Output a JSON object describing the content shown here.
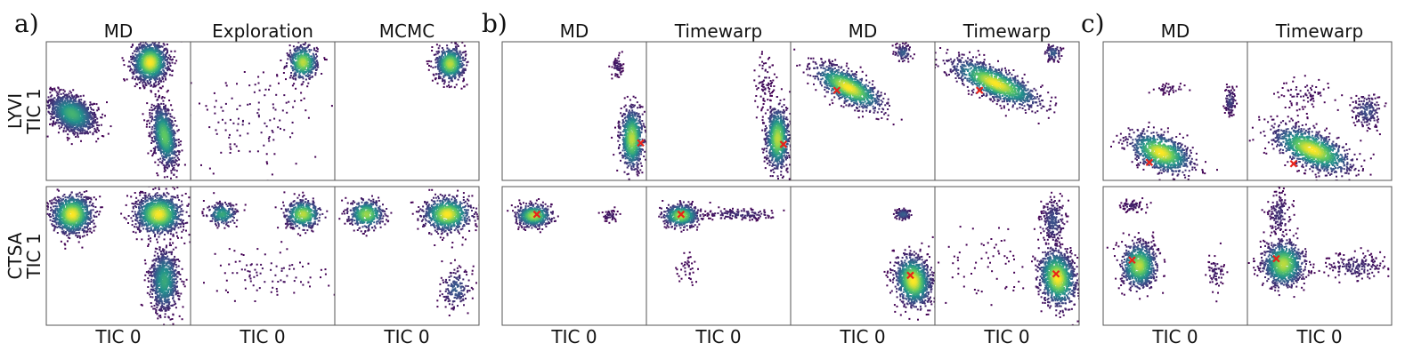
{
  "chart_data": [
    {
      "panel_label": "a)",
      "type": "heatmap",
      "columns": [
        "MD",
        "Exploration",
        "MCMC"
      ],
      "rows": [
        "LYVI",
        "CTSA"
      ],
      "ylabel": "TIC 1",
      "xlabel": "TIC 0",
      "colormap": [
        "#440154",
        "#3b528b",
        "#21918c",
        "#5ec962",
        "#fde725"
      ],
      "cells": [
        {
          "row": "LYVI",
          "col": "MD",
          "clusters": [
            {
              "x": 0.18,
              "y": 0.48,
              "sx": 0.09,
              "sy": 0.06,
              "rot": -35,
              "n": 1300,
              "peak": 0.65
            },
            {
              "x": 0.72,
              "y": 0.85,
              "sx": 0.06,
              "sy": 0.07,
              "rot": 0,
              "n": 1300,
              "peak": 1.0
            },
            {
              "x": 0.82,
              "y": 0.32,
              "sx": 0.04,
              "sy": 0.11,
              "rot": 10,
              "n": 1000,
              "peak": 0.75
            }
          ]
        },
        {
          "row": "LYVI",
          "col": "Exploration",
          "clusters": [
            {
              "x": 0.78,
              "y": 0.85,
              "sx": 0.05,
              "sy": 0.06,
              "rot": 0,
              "n": 500,
              "peak": 0.9
            },
            {
              "x": 0.45,
              "y": 0.45,
              "sx": 0.22,
              "sy": 0.18,
              "rot": 0,
              "n": 120,
              "peak": 0.05
            }
          ]
        },
        {
          "row": "LYVI",
          "col": "MCMC",
          "clusters": [
            {
              "x": 0.8,
              "y": 0.84,
              "sx": 0.05,
              "sy": 0.06,
              "rot": 0,
              "n": 650,
              "peak": 0.9
            }
          ]
        },
        {
          "row": "CTSA",
          "col": "MD",
          "clusters": [
            {
              "x": 0.18,
              "y": 0.8,
              "sx": 0.07,
              "sy": 0.07,
              "rot": 0,
              "n": 1100,
              "peak": 1.0
            },
            {
              "x": 0.78,
              "y": 0.8,
              "sx": 0.08,
              "sy": 0.07,
              "rot": 0,
              "n": 1200,
              "peak": 1.0
            },
            {
              "x": 0.82,
              "y": 0.32,
              "sx": 0.05,
              "sy": 0.11,
              "rot": 0,
              "n": 900,
              "peak": 0.6
            }
          ]
        },
        {
          "row": "CTSA",
          "col": "Exploration",
          "clusters": [
            {
              "x": 0.22,
              "y": 0.8,
              "sx": 0.05,
              "sy": 0.04,
              "rot": 0,
              "n": 250,
              "peak": 0.6
            },
            {
              "x": 0.78,
              "y": 0.8,
              "sx": 0.06,
              "sy": 0.05,
              "rot": 0,
              "n": 500,
              "peak": 0.9
            },
            {
              "x": 0.55,
              "y": 0.37,
              "sx": 0.2,
              "sy": 0.1,
              "rot": 0,
              "n": 90,
              "peak": 0.05
            }
          ]
        },
        {
          "row": "CTSA",
          "col": "MCMC",
          "clusters": [
            {
              "x": 0.22,
              "y": 0.8,
              "sx": 0.06,
              "sy": 0.05,
              "rot": 0,
              "n": 500,
              "peak": 0.85
            },
            {
              "x": 0.78,
              "y": 0.8,
              "sx": 0.08,
              "sy": 0.06,
              "rot": 0,
              "n": 900,
              "peak": 1.0
            },
            {
              "x": 0.84,
              "y": 0.26,
              "sx": 0.05,
              "sy": 0.07,
              "rot": 0,
              "n": 180,
              "peak": 0.3
            }
          ]
        }
      ]
    },
    {
      "panel_label": "b)",
      "type": "heatmap",
      "columns": [
        "MD",
        "Timewarp",
        "MD",
        "Timewarp"
      ],
      "xlabel": "TIC 0",
      "colormap": [
        "#440154",
        "#3b528b",
        "#21918c",
        "#5ec962",
        "#fde725"
      ],
      "marker_color": "#e8231a",
      "cells": [
        {
          "row": 0,
          "col": 0,
          "marker": {
            "x": 0.96,
            "y": 0.27
          },
          "clusters": [
            {
              "x": 0.9,
              "y": 0.3,
              "sx": 0.04,
              "sy": 0.11,
              "rot": 0,
              "n": 800,
              "peak": 0.9
            },
            {
              "x": 0.8,
              "y": 0.82,
              "sx": 0.02,
              "sy": 0.04,
              "rot": 0,
              "n": 60,
              "peak": 0.1
            }
          ]
        },
        {
          "row": 0,
          "col": 1,
          "marker": {
            "x": 0.95,
            "y": 0.26
          },
          "clusters": [
            {
              "x": 0.91,
              "y": 0.3,
              "sx": 0.04,
              "sy": 0.11,
              "rot": 0,
              "n": 900,
              "peak": 0.9
            },
            {
              "x": 0.82,
              "y": 0.72,
              "sx": 0.04,
              "sy": 0.1,
              "rot": 0,
              "n": 80,
              "peak": 0.05
            }
          ]
        },
        {
          "row": 0,
          "col": 2,
          "marker": {
            "x": 0.32,
            "y": 0.65
          },
          "clusters": [
            {
              "x": 0.4,
              "y": 0.67,
              "sx": 0.13,
              "sy": 0.05,
              "rot": -30,
              "n": 1100,
              "peak": 1.0
            },
            {
              "x": 0.78,
              "y": 0.92,
              "sx": 0.03,
              "sy": 0.03,
              "rot": 0,
              "n": 100,
              "peak": 0.3
            }
          ]
        },
        {
          "row": 0,
          "col": 3,
          "marker": {
            "x": 0.31,
            "y": 0.65
          },
          "clusters": [
            {
              "x": 0.42,
              "y": 0.7,
              "sx": 0.16,
              "sy": 0.05,
              "rot": -25,
              "n": 1300,
              "peak": 1.0
            },
            {
              "x": 0.82,
              "y": 0.92,
              "sx": 0.03,
              "sy": 0.03,
              "rot": 0,
              "n": 90,
              "peak": 0.3
            }
          ]
        },
        {
          "row": 1,
          "col": 0,
          "marker": {
            "x": 0.24,
            "y": 0.8
          },
          "clusters": [
            {
              "x": 0.22,
              "y": 0.79,
              "sx": 0.06,
              "sy": 0.04,
              "rot": 0,
              "n": 600,
              "peak": 0.9
            },
            {
              "x": 0.75,
              "y": 0.79,
              "sx": 0.03,
              "sy": 0.02,
              "rot": 0,
              "n": 50,
              "peak": 0.1
            }
          ]
        },
        {
          "row": 1,
          "col": 1,
          "marker": {
            "x": 0.24,
            "y": 0.8
          },
          "clusters": [
            {
              "x": 0.24,
              "y": 0.79,
              "sx": 0.06,
              "sy": 0.04,
              "rot": 0,
              "n": 600,
              "peak": 0.9
            },
            {
              "x": 0.65,
              "y": 0.8,
              "sx": 0.13,
              "sy": 0.02,
              "rot": 0,
              "n": 150,
              "peak": 0.15
            },
            {
              "x": 0.28,
              "y": 0.4,
              "sx": 0.03,
              "sy": 0.06,
              "rot": 0,
              "n": 40,
              "peak": 0.05
            }
          ]
        },
        {
          "row": 1,
          "col": 2,
          "marker": {
            "x": 0.83,
            "y": 0.36
          },
          "clusters": [
            {
              "x": 0.85,
              "y": 0.32,
              "sx": 0.06,
              "sy": 0.09,
              "rot": 10,
              "n": 1200,
              "peak": 1.0
            },
            {
              "x": 0.78,
              "y": 0.8,
              "sx": 0.03,
              "sy": 0.02,
              "rot": 0,
              "n": 110,
              "peak": 0.3
            }
          ]
        },
        {
          "row": 1,
          "col": 3,
          "marker": {
            "x": 0.84,
            "y": 0.37
          },
          "clusters": [
            {
              "x": 0.85,
              "y": 0.34,
              "sx": 0.06,
              "sy": 0.1,
              "rot": 10,
              "n": 1200,
              "peak": 1.0
            },
            {
              "x": 0.82,
              "y": 0.75,
              "sx": 0.04,
              "sy": 0.08,
              "rot": 0,
              "n": 250,
              "peak": 0.25
            },
            {
              "x": 0.35,
              "y": 0.45,
              "sx": 0.15,
              "sy": 0.15,
              "rot": 0,
              "n": 60,
              "peak": 0.02
            }
          ]
        }
      ]
    },
    {
      "panel_label": "c)",
      "type": "heatmap",
      "columns": [
        "MD",
        "Timewarp"
      ],
      "xlabel": "TIC 0",
      "colormap": [
        "#440154",
        "#3b528b",
        "#21918c",
        "#5ec962",
        "#fde725"
      ],
      "marker_color": "#e8231a",
      "cells": [
        {
          "row": 0,
          "col": 0,
          "marker": {
            "x": 0.32,
            "y": 0.13
          },
          "clusters": [
            {
              "x": 0.4,
              "y": 0.2,
              "sx": 0.11,
              "sy": 0.06,
              "rot": -25,
              "n": 1000,
              "peak": 1.0
            },
            {
              "x": 0.88,
              "y": 0.57,
              "sx": 0.02,
              "sy": 0.05,
              "rot": 0,
              "n": 100,
              "peak": 0.2
            },
            {
              "x": 0.45,
              "y": 0.66,
              "sx": 0.07,
              "sy": 0.02,
              "rot": 0,
              "n": 40,
              "peak": 0.05
            }
          ]
        },
        {
          "row": 0,
          "col": 1,
          "marker": {
            "x": 0.32,
            "y": 0.12
          },
          "clusters": [
            {
              "x": 0.45,
              "y": 0.22,
              "sx": 0.14,
              "sy": 0.06,
              "rot": -25,
              "n": 1300,
              "peak": 1.0
            },
            {
              "x": 0.83,
              "y": 0.5,
              "sx": 0.05,
              "sy": 0.06,
              "rot": 0,
              "n": 180,
              "peak": 0.25
            },
            {
              "x": 0.4,
              "y": 0.62,
              "sx": 0.1,
              "sy": 0.06,
              "rot": 0,
              "n": 80,
              "peak": 0.05
            }
          ]
        },
        {
          "row": 1,
          "col": 0,
          "marker": {
            "x": 0.2,
            "y": 0.47
          },
          "clusters": [
            {
              "x": 0.25,
              "y": 0.43,
              "sx": 0.06,
              "sy": 0.08,
              "rot": 0,
              "n": 900,
              "peak": 0.9
            },
            {
              "x": 0.2,
              "y": 0.86,
              "sx": 0.04,
              "sy": 0.02,
              "rot": 0,
              "n": 70,
              "peak": 0.1
            },
            {
              "x": 0.78,
              "y": 0.38,
              "sx": 0.03,
              "sy": 0.06,
              "rot": 0,
              "n": 70,
              "peak": 0.1
            }
          ]
        },
        {
          "row": 1,
          "col": 1,
          "marker": {
            "x": 0.2,
            "y": 0.48
          },
          "clusters": [
            {
              "x": 0.25,
              "y": 0.44,
              "sx": 0.07,
              "sy": 0.08,
              "rot": 0,
              "n": 1000,
              "peak": 0.9
            },
            {
              "x": 0.22,
              "y": 0.8,
              "sx": 0.04,
              "sy": 0.08,
              "rot": 0,
              "n": 160,
              "peak": 0.15
            },
            {
              "x": 0.75,
              "y": 0.42,
              "sx": 0.1,
              "sy": 0.05,
              "rot": 0,
              "n": 180,
              "peak": 0.15
            }
          ]
        }
      ]
    }
  ]
}
